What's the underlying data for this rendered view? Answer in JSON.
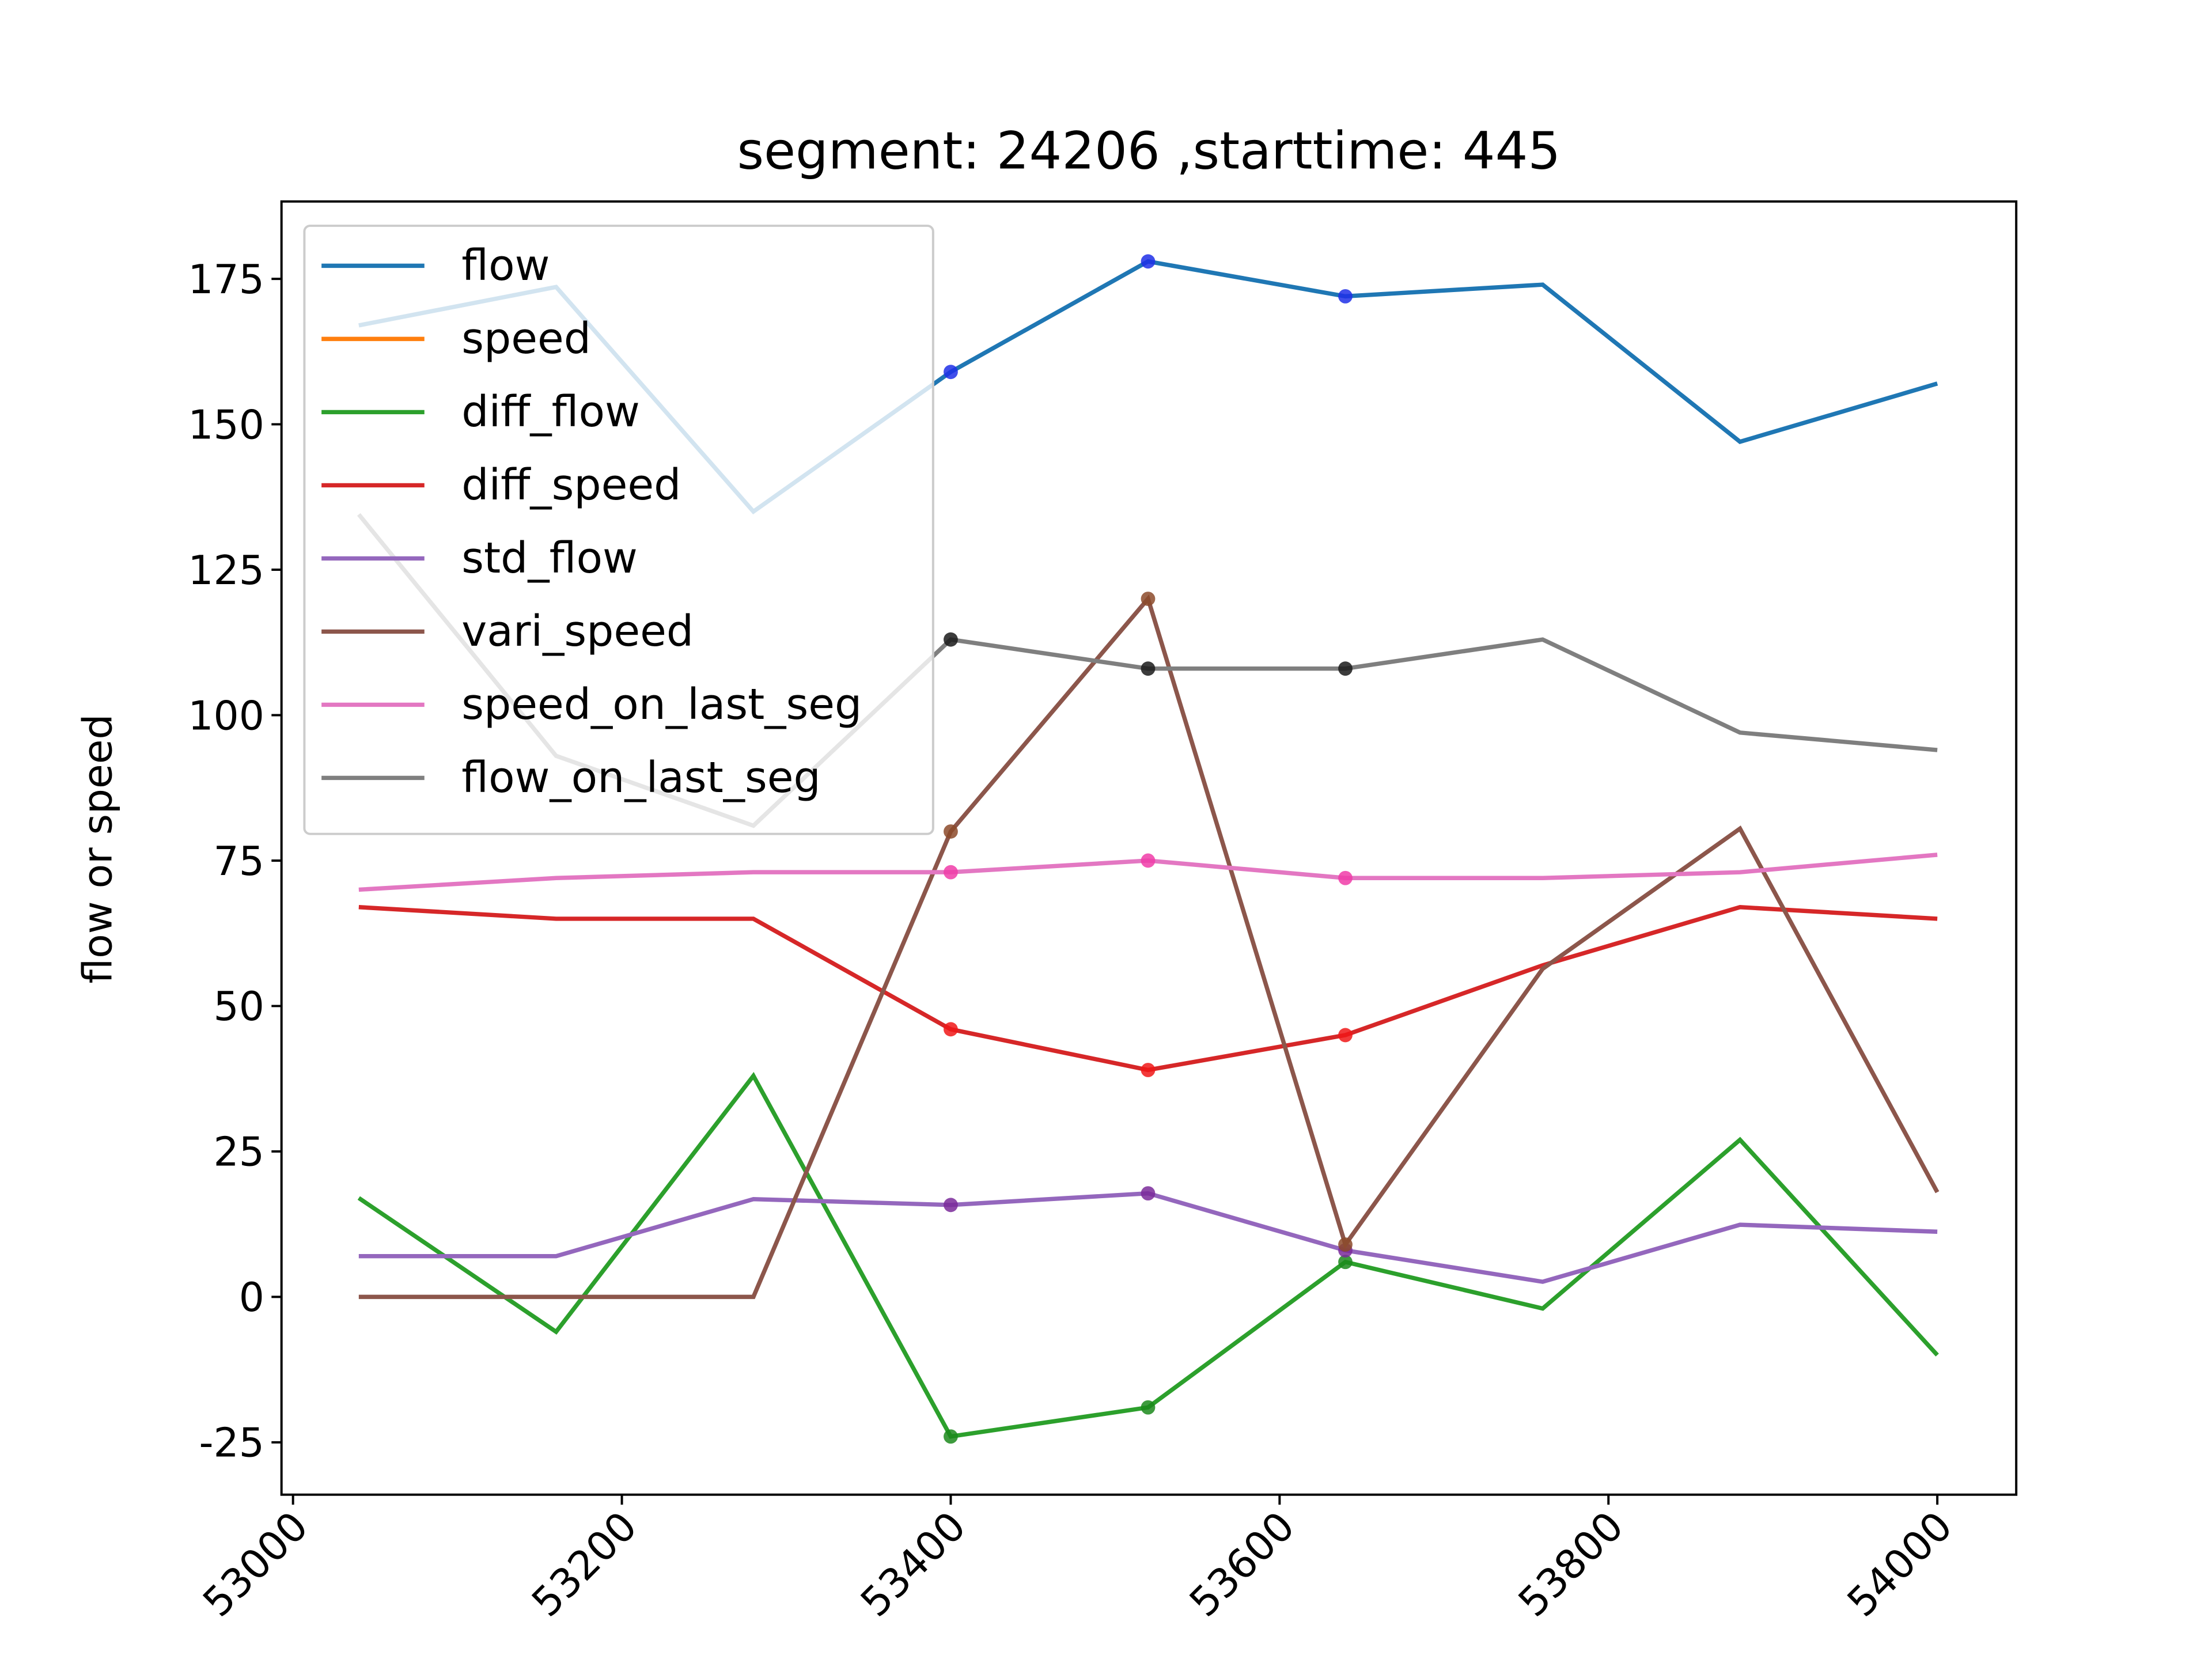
{
  "chart_data": {
    "type": "line",
    "title": "segment: 24206 ,starttime: 445",
    "ylabel": "flow or speed",
    "x": [
      53040,
      53160,
      53280,
      53400,
      53520,
      53640,
      53760,
      53880,
      54000
    ],
    "xlim": [
      52993,
      54048
    ],
    "xticks": [
      53000,
      53200,
      53400,
      53600,
      53800,
      54000
    ],
    "ylim": [
      -34,
      188.3
    ],
    "yticks": [
      -25,
      0,
      25,
      50,
      75,
      100,
      125,
      150,
      175
    ],
    "legend": "upper left",
    "highlight_indices": [
      3,
      4,
      5
    ],
    "series": [
      {
        "name": "flow",
        "color": "#1f77b4",
        "marker_color": "#1f2fe8",
        "values": [
          167,
          173.6,
          135,
          159,
          178,
          172,
          174,
          147,
          157
        ]
      },
      {
        "name": "speed",
        "color": "#ff7f0e",
        "marker_color": "#ff7f0e",
        "values": [
          null,
          null,
          null,
          null,
          null,
          null,
          null,
          null,
          null
        ]
      },
      {
        "name": "diff_flow",
        "color": "#2ca02c",
        "marker_color": "#1c8a1c",
        "values": [
          17,
          -6,
          38,
          -24,
          -19,
          6,
          -2,
          27,
          -10
        ]
      },
      {
        "name": "diff_speed",
        "color": "#d62728",
        "marker_color": "#f01818",
        "values": [
          67,
          65,
          65,
          46,
          39,
          45,
          57,
          67,
          65
        ]
      },
      {
        "name": "std_flow",
        "color": "#9467bd",
        "marker_color": "#7a2a9a",
        "values": [
          7,
          7,
          16.8,
          15.8,
          17.8,
          8,
          2.6,
          12.4,
          11.2
        ]
      },
      {
        "name": "vari_speed",
        "color": "#8c564b",
        "marker_color": "#8c4a2a",
        "values": [
          0,
          0,
          0,
          80,
          120,
          9,
          56.4,
          80.5,
          18
        ]
      },
      {
        "name": "speed_on_last_seg",
        "color": "#e377c2",
        "marker_color": "#f03ca8",
        "values": [
          70,
          72,
          73,
          73,
          75,
          72,
          72,
          73,
          76
        ]
      },
      {
        "name": "flow_on_last_seg",
        "color": "#7f7f7f",
        "marker_color": "#1a1a1a",
        "values": [
          134.5,
          93,
          81,
          113,
          108,
          108,
          113,
          97,
          94
        ]
      }
    ]
  }
}
